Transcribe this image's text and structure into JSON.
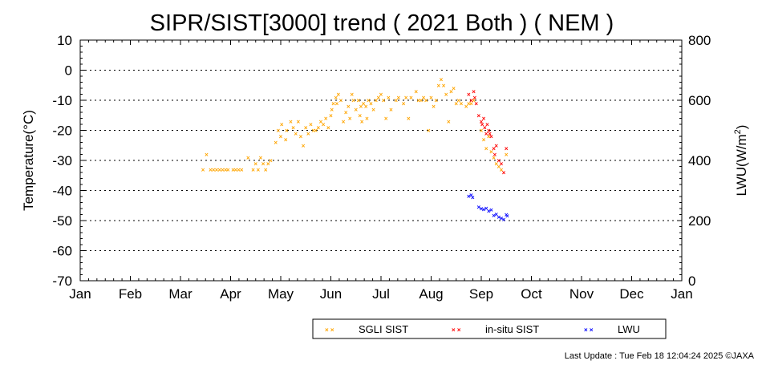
{
  "chart_data": {
    "type": "scatter",
    "title": "SIPR/SIST[3000] trend ( 2021 Both ) ( NEM )",
    "xlabel": "",
    "ylabel": "Temperature(°C)",
    "y2label_main": "LWU(W/m",
    "y2label_sup": "2",
    "y2label_end": ")",
    "ylim": [
      -70,
      10
    ],
    "y2lim": [
      0,
      800
    ],
    "y_ticks": [
      "10",
      "0",
      "-10",
      "-20",
      "-30",
      "-40",
      "-50",
      "-60",
      "-70"
    ],
    "y2_ticks": [
      "800",
      "600",
      "400",
      "200",
      "0"
    ],
    "x_ticks": [
      "Jan",
      "Feb",
      "Mar",
      "Apr",
      "May",
      "Jun",
      "Jul",
      "Aug",
      "Sep",
      "Oct",
      "Nov",
      "Dec",
      "Jan"
    ],
    "x_unit": "month (Jan 1 = 0, Feb 1 = 1, ... next Jan 1 = 12)",
    "grid": "horizontal dotted",
    "legend_position": "bottom-right",
    "series": [
      {
        "name": "SGLI SIST",
        "color": "#ffa500",
        "axis": "left",
        "points": [
          [
            2.45,
            -33
          ],
          [
            2.52,
            -28
          ],
          [
            2.6,
            -33
          ],
          [
            2.66,
            -33
          ],
          [
            2.72,
            -33
          ],
          [
            2.78,
            -33
          ],
          [
            2.84,
            -33
          ],
          [
            2.9,
            -33
          ],
          [
            2.95,
            -33
          ],
          [
            3.05,
            -33
          ],
          [
            3.1,
            -33
          ],
          [
            3.16,
            -33
          ],
          [
            3.22,
            -33
          ],
          [
            3.35,
            -29
          ],
          [
            3.45,
            -33
          ],
          [
            3.5,
            -31
          ],
          [
            3.55,
            -33
          ],
          [
            3.6,
            -29
          ],
          [
            3.65,
            -31
          ],
          [
            3.7,
            -33
          ],
          [
            3.75,
            -31
          ],
          [
            3.8,
            -30
          ],
          [
            3.9,
            -24
          ],
          [
            3.95,
            -20
          ],
          [
            4.0,
            -22
          ],
          [
            4.02,
            -18
          ],
          [
            4.1,
            -23
          ],
          [
            4.12,
            -20
          ],
          [
            4.2,
            -17
          ],
          [
            4.25,
            -19
          ],
          [
            4.3,
            -21
          ],
          [
            4.35,
            -17
          ],
          [
            4.4,
            -22
          ],
          [
            4.45,
            -25
          ],
          [
            4.5,
            -19
          ],
          [
            4.55,
            -21
          ],
          [
            4.6,
            -18
          ],
          [
            4.65,
            -20
          ],
          [
            4.7,
            -20
          ],
          [
            4.75,
            -19
          ],
          [
            4.8,
            -17
          ],
          [
            4.85,
            -18
          ],
          [
            4.9,
            -16
          ],
          [
            4.95,
            -19
          ],
          [
            5.0,
            -15
          ],
          [
            5.02,
            -13
          ],
          [
            5.05,
            -11
          ],
          [
            5.1,
            -9
          ],
          [
            5.12,
            -11
          ],
          [
            5.15,
            -8
          ],
          [
            5.2,
            -10
          ],
          [
            5.25,
            -17
          ],
          [
            5.3,
            -14
          ],
          [
            5.35,
            -12
          ],
          [
            5.38,
            -16
          ],
          [
            5.42,
            -8
          ],
          [
            5.45,
            -10
          ],
          [
            5.5,
            -13
          ],
          [
            5.55,
            -10
          ],
          [
            5.58,
            -15
          ],
          [
            5.6,
            -12
          ],
          [
            5.62,
            -17
          ],
          [
            5.65,
            -11
          ],
          [
            5.7,
            -12
          ],
          [
            5.72,
            -16
          ],
          [
            5.75,
            -10
          ],
          [
            5.8,
            -11
          ],
          [
            5.85,
            -13
          ],
          [
            5.9,
            -10
          ],
          [
            5.95,
            -9
          ],
          [
            6.0,
            -8
          ],
          [
            6.05,
            -10
          ],
          [
            6.1,
            -16
          ],
          [
            6.15,
            -9
          ],
          [
            6.2,
            -13
          ],
          [
            6.3,
            -10
          ],
          [
            6.35,
            -9
          ],
          [
            6.45,
            -11
          ],
          [
            6.5,
            -9
          ],
          [
            6.55,
            -16
          ],
          [
            6.6,
            -9
          ],
          [
            6.7,
            -7
          ],
          [
            6.75,
            -10
          ],
          [
            6.8,
            -10
          ],
          [
            6.85,
            -9
          ],
          [
            6.9,
            -10
          ],
          [
            6.95,
            -20
          ],
          [
            7.0,
            -9
          ],
          [
            7.05,
            -12
          ],
          [
            7.1,
            -10
          ],
          [
            7.15,
            -5
          ],
          [
            7.2,
            -3
          ],
          [
            7.25,
            -5
          ],
          [
            7.3,
            -8
          ],
          [
            7.35,
            -17
          ],
          [
            7.4,
            -7
          ],
          [
            7.45,
            -6
          ],
          [
            7.5,
            -11
          ],
          [
            7.55,
            -10
          ],
          [
            7.6,
            -11
          ],
          [
            7.7,
            -12
          ],
          [
            7.75,
            -11
          ],
          [
            7.8,
            -11
          ],
          [
            7.85,
            -10
          ],
          [
            8.0,
            -20
          ],
          [
            8.05,
            -23
          ],
          [
            8.1,
            -26
          ],
          [
            8.15,
            -22
          ],
          [
            8.2,
            -27
          ],
          [
            8.25,
            -29
          ],
          [
            8.3,
            -31
          ],
          [
            8.35,
            -32
          ],
          [
            8.4,
            -33
          ],
          [
            8.5,
            -28
          ]
        ]
      },
      {
        "name": "in-situ SIST",
        "color": "#ff0000",
        "axis": "left",
        "points": [
          [
            7.75,
            -8
          ],
          [
            7.8,
            -10
          ],
          [
            7.85,
            -7
          ],
          [
            7.87,
            -9
          ],
          [
            7.9,
            -11
          ],
          [
            7.95,
            -15
          ],
          [
            8.0,
            -17
          ],
          [
            8.02,
            -18
          ],
          [
            8.05,
            -16
          ],
          [
            8.07,
            -19
          ],
          [
            8.1,
            -21
          ],
          [
            8.12,
            -18
          ],
          [
            8.15,
            -20
          ],
          [
            8.17,
            -21
          ],
          [
            8.2,
            -22
          ],
          [
            8.25,
            -26
          ],
          [
            8.27,
            -28
          ],
          [
            8.3,
            -25
          ],
          [
            8.35,
            -30
          ],
          [
            8.4,
            -31
          ],
          [
            8.45,
            -34
          ],
          [
            8.5,
            -26
          ]
        ]
      },
      {
        "name": "LWU",
        "color": "#0000ff",
        "axis": "right",
        "points": [
          [
            7.75,
            282
          ],
          [
            7.8,
            286
          ],
          [
            7.83,
            278
          ],
          [
            7.95,
            245
          ],
          [
            8.0,
            240
          ],
          [
            8.05,
            238
          ],
          [
            8.1,
            242
          ],
          [
            8.15,
            232
          ],
          [
            8.2,
            236
          ],
          [
            8.25,
            218
          ],
          [
            8.3,
            222
          ],
          [
            8.35,
            212
          ],
          [
            8.4,
            208
          ],
          [
            8.45,
            204
          ],
          [
            8.5,
            220
          ],
          [
            8.52,
            216
          ]
        ]
      }
    ]
  },
  "footer": {
    "last_update": "Last Update : Tue Feb 18 12:04:24 2025  ©JAXA"
  }
}
